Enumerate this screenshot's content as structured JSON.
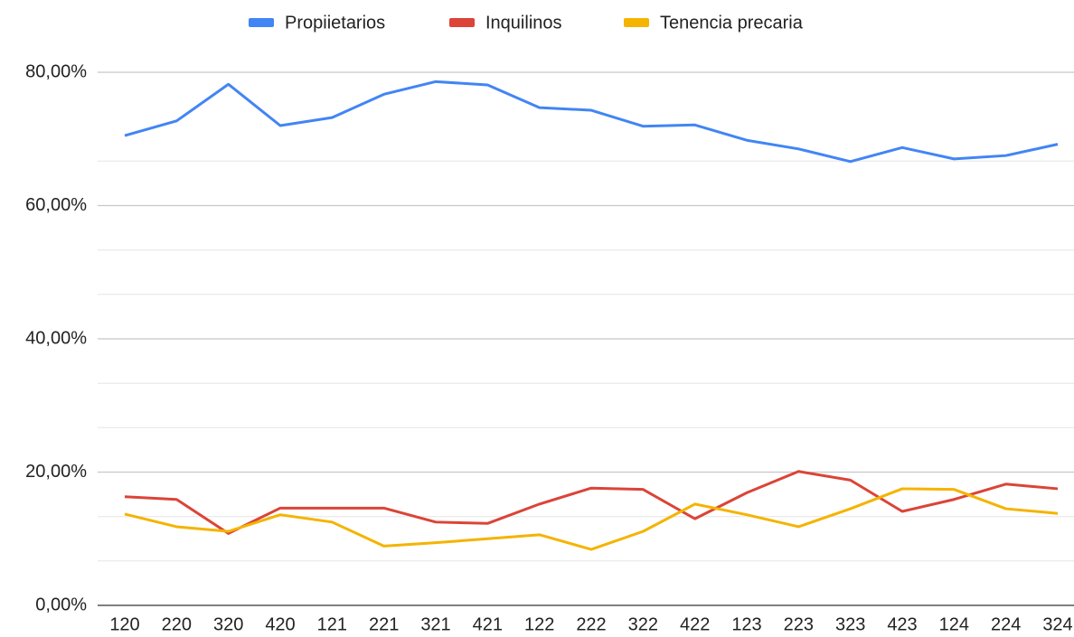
{
  "chart_data": {
    "type": "line",
    "categories": [
      "120",
      "220",
      "320",
      "420",
      "121",
      "221",
      "321",
      "421",
      "122",
      "222",
      "322",
      "422",
      "123",
      "223",
      "323",
      "423",
      "124",
      "224",
      "324"
    ],
    "series": [
      {
        "name": "Propiietarios",
        "color": "#4285f4",
        "values": [
          70.5,
          72.7,
          78.2,
          72.0,
          73.2,
          76.7,
          78.6,
          78.1,
          74.7,
          74.3,
          71.9,
          72.1,
          69.8,
          68.5,
          66.6,
          68.7,
          67.0,
          67.5,
          69.2
        ]
      },
      {
        "name": "Inquilinos",
        "color": "#db4437",
        "values": [
          16.3,
          15.9,
          10.8,
          14.6,
          14.6,
          14.6,
          12.5,
          12.3,
          15.2,
          17.6,
          17.4,
          13.0,
          16.9,
          20.1,
          18.8,
          14.1,
          15.9,
          18.2,
          17.5
        ]
      },
      {
        "name": "Tenencia precaria",
        "color": "#f4b400",
        "values": [
          13.7,
          11.8,
          11.1,
          13.6,
          12.5,
          8.9,
          9.4,
          10.0,
          10.6,
          8.4,
          11.1,
          15.2,
          13.6,
          11.8,
          14.5,
          17.5,
          17.4,
          14.5,
          13.8
        ]
      }
    ],
    "ylim": [
      0,
      80
    ],
    "yticks": [
      {
        "value": 0,
        "label": "0,00%"
      },
      {
        "value": 20,
        "label": "20,00%"
      },
      {
        "value": 40,
        "label": "40,00%"
      },
      {
        "value": 60,
        "label": "60,00%"
      },
      {
        "value": 80,
        "label": "80,00%"
      }
    ],
    "minor_yticks": [
      6.67,
      13.33,
      26.67,
      33.33,
      46.67,
      53.33,
      66.67
    ],
    "grid": true,
    "legend": "top"
  }
}
